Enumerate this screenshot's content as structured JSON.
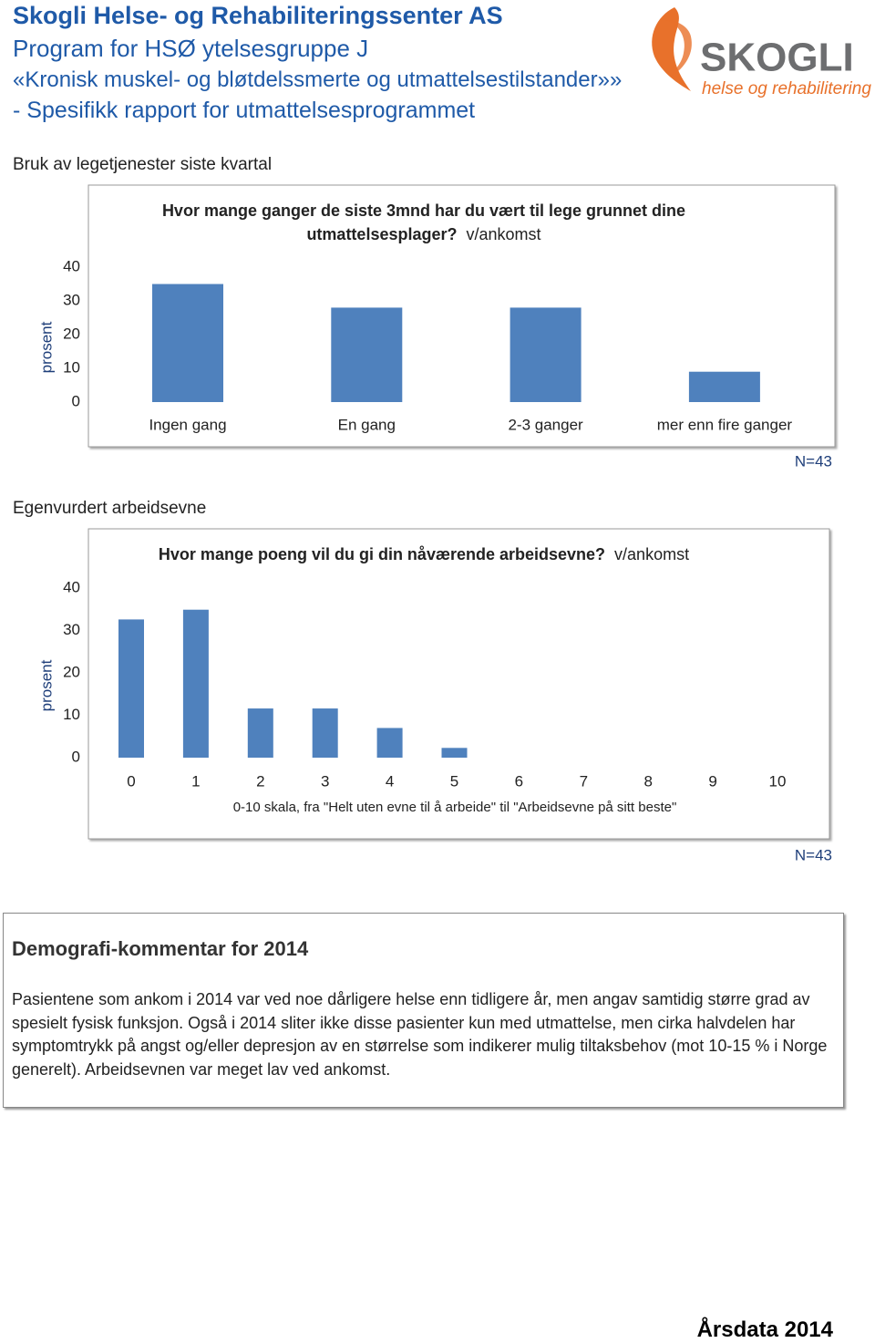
{
  "header": {
    "org": "Skogli Helse- og Rehabiliteringssenter AS",
    "program": "Program for HSØ ytelsesgruppe J",
    "group": "«Kronisk muskel- og bløtdelssmerte og utmattelsestilstander»»",
    "report": "- Spesifikk rapport for utmattelsesprogrammet",
    "logo_name": "SKOGLI",
    "logo_tagline": "helse og rehabilitering"
  },
  "sections": [
    "Bruk av legetjenester siste kvartal",
    "Egenvurdert arbeidsevne"
  ],
  "chart_data": [
    {
      "type": "bar",
      "title": "Hvor mange ganger de siste 3mnd har du vært til lege grunnet dine utmattelsesplager?",
      "subtitle": "v/ankomst",
      "ylabel": "prosent",
      "categories": [
        "Ingen gang",
        "En gang",
        "2-3 ganger",
        "mer enn fire ganger"
      ],
      "values": [
        35,
        28,
        28,
        9
      ],
      "color": "#4f81bd",
      "ylim": [
        0,
        40
      ],
      "yticks": [
        0,
        10,
        20,
        30,
        40
      ],
      "note": "N=43"
    },
    {
      "type": "bar",
      "title": "Hvor mange poeng vil du gi din nåværende arbeidsevne?",
      "subtitle": "v/ankomst",
      "ylabel": "prosent",
      "xlabel": "0-10 skala, fra \"Helt uten evne til å arbeide\" til \"Arbeidsevne på sitt beste\"",
      "categories": [
        "0",
        "1",
        "2",
        "3",
        "4",
        "5",
        "6",
        "7",
        "8",
        "9",
        "10"
      ],
      "values": [
        32.6,
        34.9,
        11.6,
        11.6,
        7,
        2.3,
        0,
        0,
        0,
        0,
        0
      ],
      "color": "#4f81bd",
      "ylim": [
        0,
        40
      ],
      "yticks": [
        0,
        10,
        20,
        30,
        40
      ],
      "note": "N=43"
    }
  ],
  "comment": {
    "heading": "Demografi-kommentar for 2014",
    "text": "Pasientene som ankom i 2014 var ved noe dårligere helse enn tidligere år, men angav samtidig større grad av spesielt fysisk funksjon. Også i 2014 sliter ikke disse pasienter kun med utmattelse, men cirka halvdelen har symptomtrykk på angst og/eller depresjon av en størrelse som indikerer mulig tiltaksbehov (mot 10-15 % i Norge generelt). Arbeidsevnen var meget lav ved ankomst."
  },
  "footer": "Årsdata 2014"
}
